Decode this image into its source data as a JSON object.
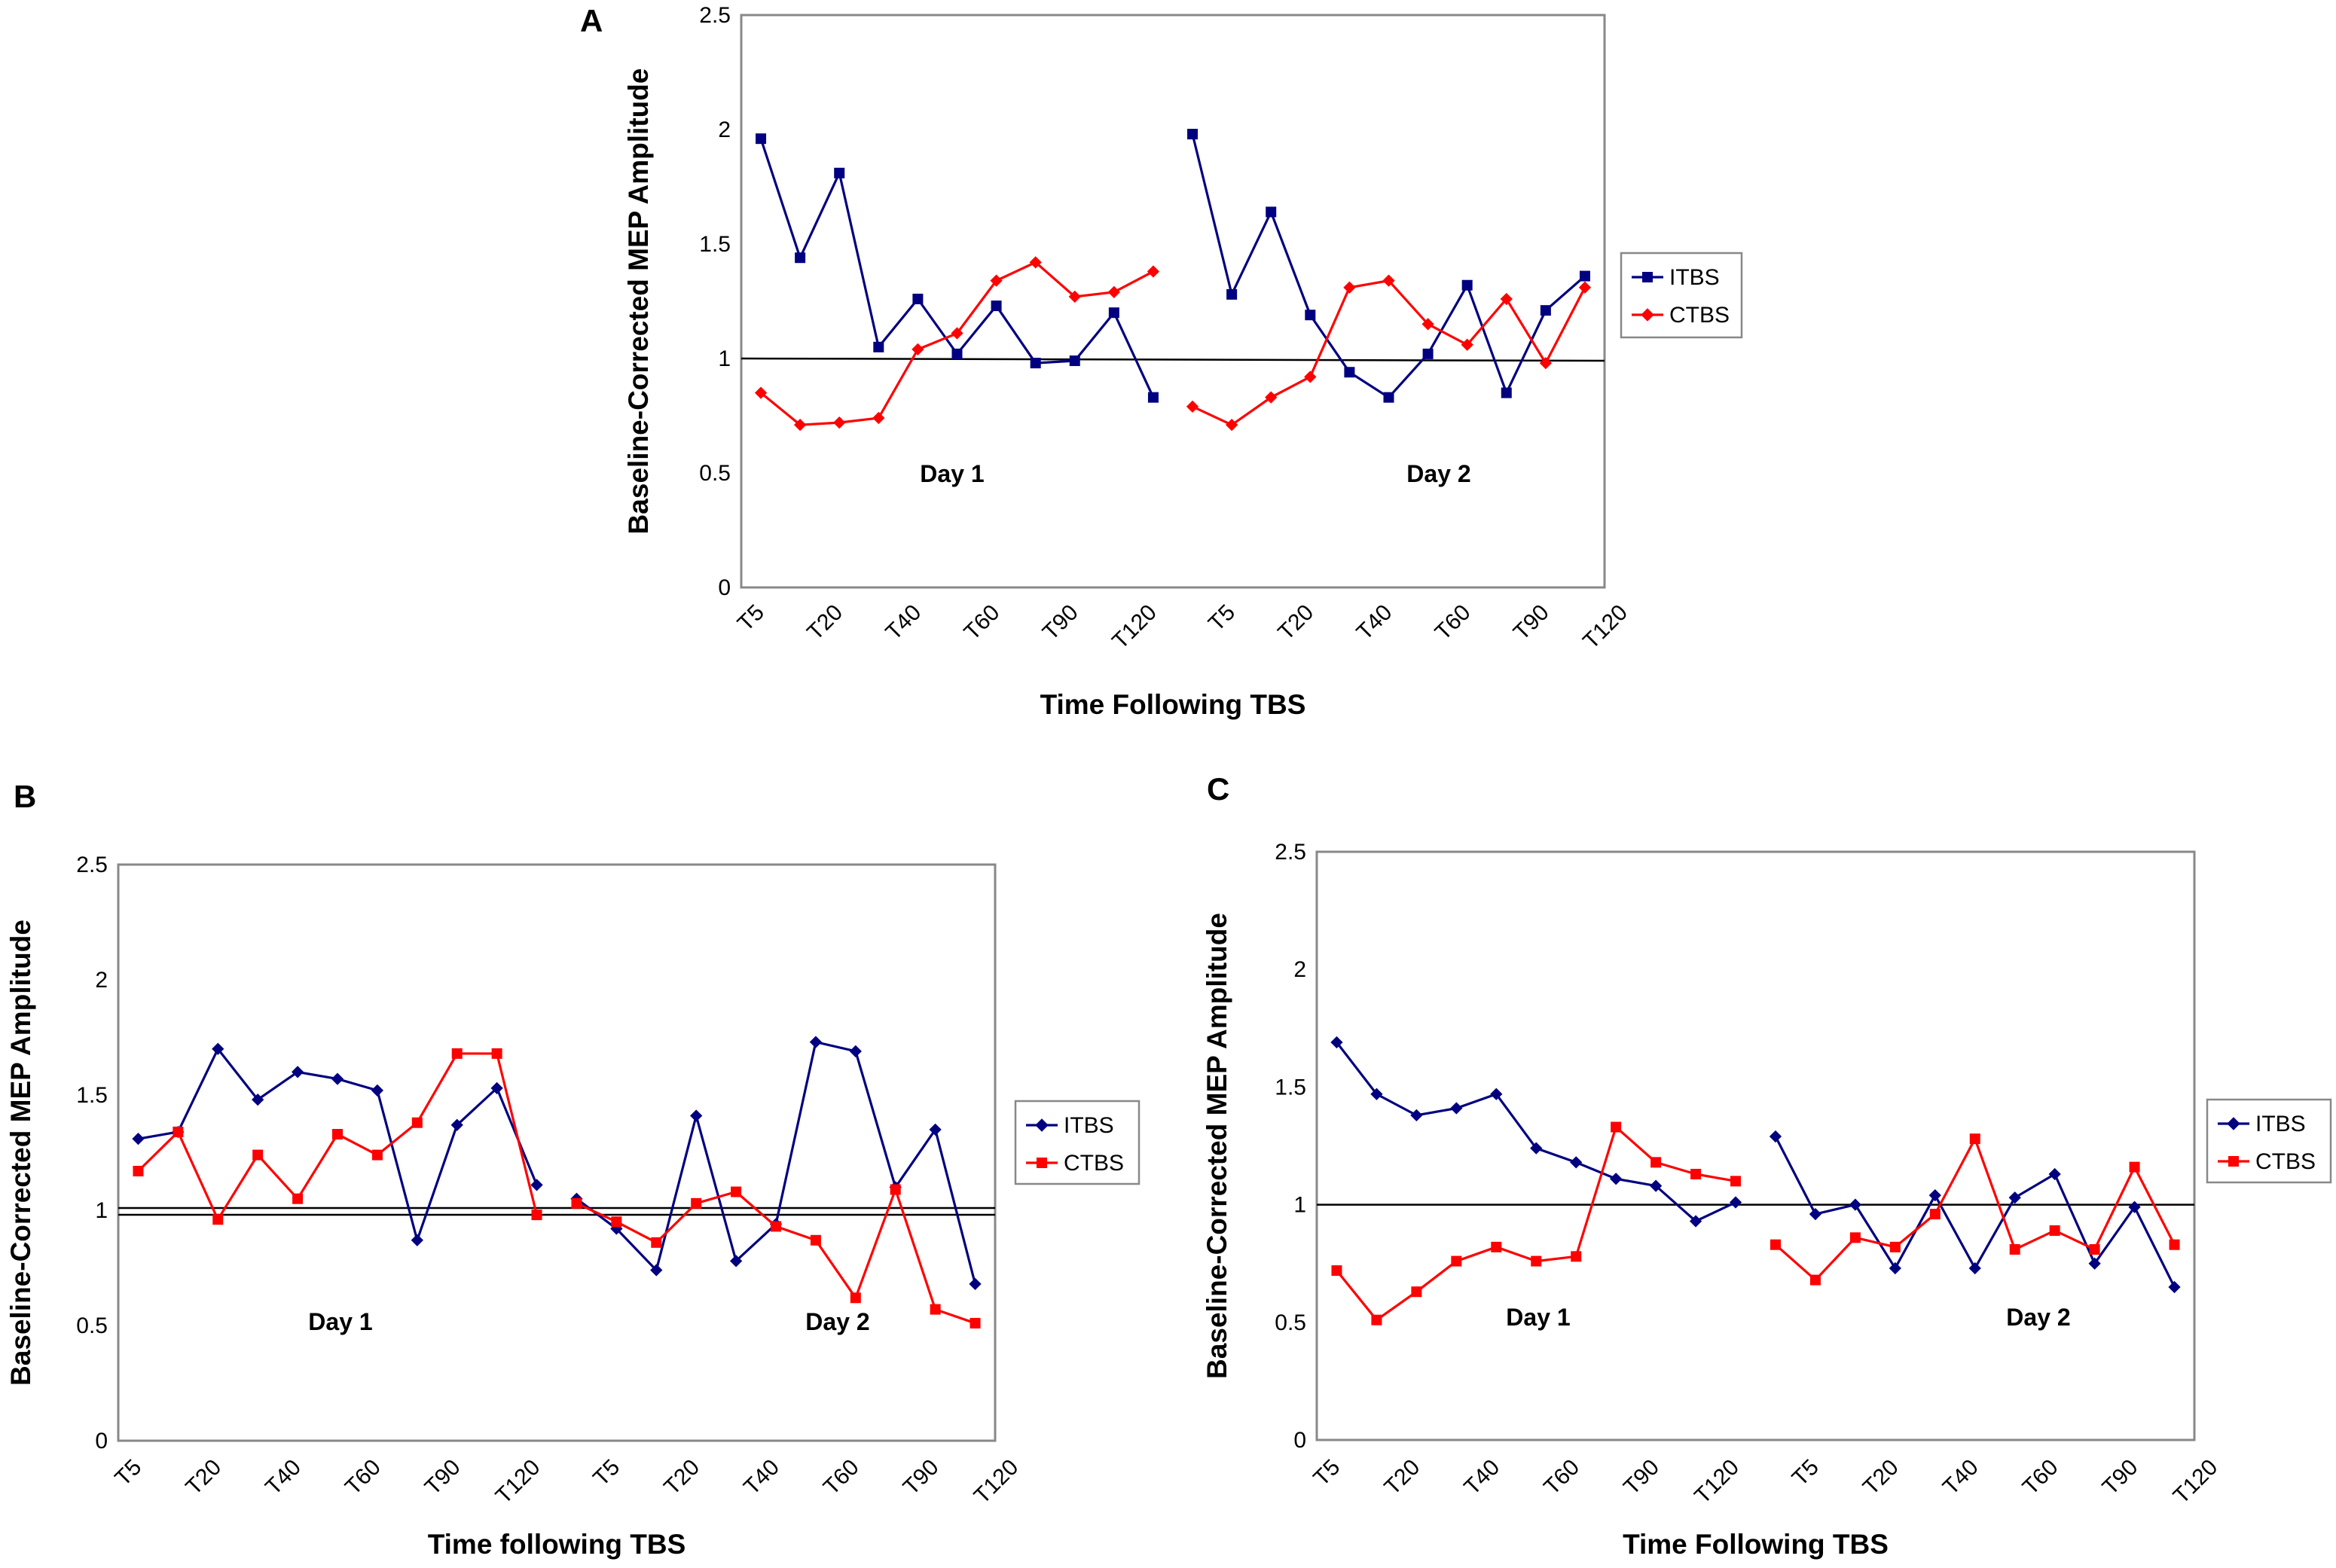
{
  "chart_data": [
    {
      "id": "A",
      "type": "line",
      "panel_label": "A",
      "xlabel": "Time Following TBS",
      "ylabel": "Baseline-Corrected MEP Amplitude",
      "ylim": [
        0,
        2.5
      ],
      "yticks": [
        "0",
        "0.5",
        "1",
        "1.5",
        "2",
        "2.5"
      ],
      "categories": [
        "T5",
        "T20",
        "T40",
        "T60",
        "T90",
        "T120",
        "T5",
        "T20",
        "T40",
        "T60",
        "T90",
        "T120"
      ],
      "reference_line": [
        1.0,
        0.99
      ],
      "day_labels": [
        "Day 1",
        "Day 2"
      ],
      "legend_position": "right",
      "colors": {
        "ITBS": "#000080",
        "CTBS": "#ff0000"
      },
      "series": [
        {
          "name": "ITBS",
          "marker": "square",
          "segments": [
            {
              "x": [
                0,
                1,
                2,
                3,
                4,
                5,
                6,
                7,
                8,
                9,
                10
              ],
              "values": [
                1.96,
                1.44,
                1.81,
                1.05,
                1.26,
                1.02,
                1.23,
                0.98,
                0.99,
                1.2,
                0.83
              ]
            },
            {
              "x": [
                11,
                12,
                13,
                14,
                15,
                16,
                17,
                18,
                19,
                20,
                21
              ],
              "values": [
                1.98,
                1.28,
                1.64,
                1.19,
                0.94,
                0.83,
                1.02,
                1.32,
                0.85,
                1.21,
                1.36
              ]
            }
          ]
        },
        {
          "name": "CTBS",
          "marker": "diamond",
          "segments": [
            {
              "x": [
                0,
                1,
                2,
                3,
                4,
                5,
                6,
                7,
                8,
                9,
                10
              ],
              "values": [
                0.85,
                0.71,
                0.72,
                0.74,
                1.04,
                1.11,
                1.34,
                1.42,
                1.27,
                1.29,
                1.38
              ]
            },
            {
              "x": [
                11,
                12,
                13,
                14,
                15,
                16,
                17,
                18,
                19,
                20,
                21
              ],
              "values": [
                0.79,
                0.71,
                0.83,
                0.92,
                1.31,
                1.34,
                1.15,
                1.06,
                1.26,
                0.98,
                1.31
              ]
            }
          ]
        }
      ]
    },
    {
      "id": "B",
      "type": "line",
      "panel_label": "B",
      "xlabel": "Time following TBS",
      "ylabel": "Baseline-Corrected MEP Amplitude",
      "ylim": [
        0,
        2.5
      ],
      "yticks": [
        "0",
        "0.5",
        "1",
        "1.5",
        "2",
        "2.5"
      ],
      "categories": [
        "T5",
        "T20",
        "T40",
        "T60",
        "T90",
        "T120",
        "T5",
        "T20",
        "T40",
        "T60",
        "T90",
        "T120"
      ],
      "reference_line": [
        1.01,
        1.01
      ],
      "day_labels": [
        "Day 1",
        "Day 2"
      ],
      "legend_position": "right",
      "colors": {
        "ITBS": "#000080",
        "CTBS": "#ff0000"
      },
      "series": [
        {
          "name": "ITBS",
          "marker": "diamond",
          "segments": [
            {
              "x": [
                0,
                1,
                2,
                3,
                4,
                5,
                6,
                7,
                8,
                9,
                10
              ],
              "values": [
                1.31,
                1.34,
                1.7,
                1.48,
                1.6,
                1.57,
                1.52,
                0.87,
                1.37,
                1.53,
                1.11
              ]
            },
            {
              "x": [
                11,
                12,
                13,
                14,
                15,
                16,
                17,
                18,
                19,
                20,
                21
              ],
              "values": [
                1.05,
                0.92,
                0.74,
                1.41,
                0.78,
                0.94,
                1.73,
                1.69,
                1.1,
                1.35,
                0.68
              ]
            }
          ]
        },
        {
          "name": "CTBS",
          "marker": "square",
          "segments": [
            {
              "x": [
                0,
                1,
                2,
                3,
                4,
                5,
                6,
                7,
                8,
                9,
                10
              ],
              "values": [
                1.17,
                1.34,
                0.96,
                1.24,
                1.05,
                1.33,
                1.24,
                1.38,
                1.68,
                1.68,
                0.98
              ]
            },
            {
              "x": [
                11,
                12,
                13,
                14,
                15,
                16,
                17,
                18,
                19,
                20,
                21
              ],
              "values": [
                1.03,
                0.95,
                0.86,
                1.03,
                1.08,
                0.93,
                0.87,
                0.62,
                1.09,
                0.57,
                0.51
              ]
            }
          ]
        }
      ]
    },
    {
      "id": "C",
      "type": "line",
      "panel_label": "C",
      "xlabel": "Time Following TBS",
      "ylabel": "Baseline-Corrected MEP Amplitude",
      "ylim": [
        0,
        2.5
      ],
      "yticks": [
        "0",
        "0.5",
        "1",
        "1.5",
        "2",
        "2.5"
      ],
      "categories": [
        "T5",
        "T20",
        "T40",
        "T60",
        "T90",
        "T120",
        "T5",
        "T20",
        "T40",
        "T60",
        "T90",
        "T120"
      ],
      "reference_line": [
        1.0,
        1.0
      ],
      "day_labels": [
        "Day 1",
        "Day 2"
      ],
      "legend_position": "right",
      "colors": {
        "ITBS": "#000080",
        "CTBS": "#ff0000"
      },
      "series": [
        {
          "name": "ITBS",
          "marker": "diamond",
          "segments": [
            {
              "x": [
                0,
                1,
                2,
                3,
                4,
                5,
                6,
                7,
                8,
                9,
                10
              ],
              "values": [
                1.69,
                1.47,
                1.38,
                1.41,
                1.47,
                1.24,
                1.18,
                1.11,
                1.08,
                0.93,
                1.01
              ]
            },
            {
              "x": [
                11,
                12,
                13,
                14,
                15,
                16,
                17,
                18,
                19,
                20,
                21
              ],
              "values": [
                1.29,
                0.96,
                1.0,
                0.73,
                1.04,
                0.73,
                1.03,
                1.13,
                0.75,
                0.99,
                0.65
              ]
            }
          ]
        },
        {
          "name": "CTBS",
          "marker": "square",
          "segments": [
            {
              "x": [
                0,
                1,
                2,
                3,
                4,
                5,
                6,
                7,
                8,
                9,
                10
              ],
              "values": [
                0.72,
                0.51,
                0.63,
                0.76,
                0.82,
                0.76,
                0.78,
                1.33,
                1.18,
                1.13,
                1.1
              ]
            },
            {
              "x": [
                11,
                12,
                13,
                14,
                15,
                16,
                17,
                18,
                19,
                20,
                21
              ],
              "values": [
                0.83,
                0.68,
                0.86,
                0.82,
                0.96,
                1.28,
                0.81,
                0.89,
                0.81,
                1.16,
                0.83
              ]
            }
          ]
        }
      ]
    }
  ]
}
